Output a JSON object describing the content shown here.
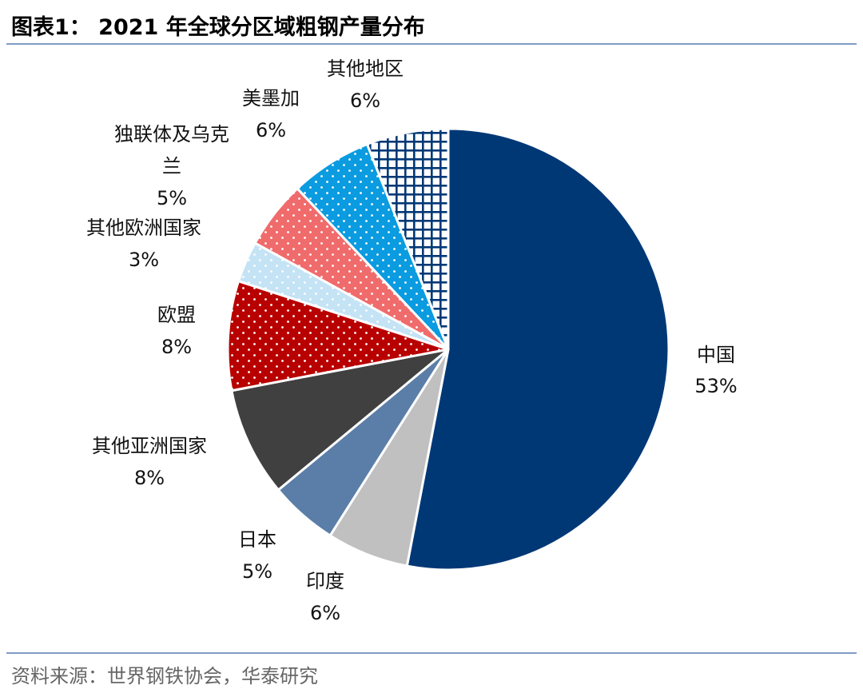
{
  "title": "图表1：  2021 年全球分区域粗钢产量分布",
  "source": "资料来源：世界钢铁协会，华泰研究",
  "chart_data": {
    "type": "pie",
    "title": "2021 年全球分区域粗钢产量分布",
    "unit": "%",
    "start": "12 o'clock, clockwise",
    "slices": [
      {
        "label": "中国",
        "value": 53,
        "value_label": "53%",
        "color": "#003876",
        "pattern": "solid"
      },
      {
        "label": "印度",
        "value": 6,
        "value_label": "6%",
        "color": "#c0c0c0",
        "pattern": "solid"
      },
      {
        "label": "日本",
        "value": 5,
        "value_label": "5%",
        "color": "#5b7ea8",
        "pattern": "solid"
      },
      {
        "label": "其他亚洲国家",
        "value": 8,
        "value_label": "8%",
        "color": "#404040",
        "pattern": "solid"
      },
      {
        "label": "欧盟",
        "value": 8,
        "value_label": "8%",
        "color": "#b80000",
        "pattern": "dots"
      },
      {
        "label": "其他欧洲国家",
        "value": 3,
        "value_label": "3%",
        "color": "#c4e3f5",
        "pattern": "dots"
      },
      {
        "label": "独联体及乌克兰",
        "label_lines": [
          "独联体及乌克",
          "兰"
        ],
        "value": 5,
        "value_label": "5%",
        "color": "#f06b6b",
        "pattern": "dots"
      },
      {
        "label": "美墨加",
        "value": 6,
        "value_label": "6%",
        "color": "#0a9be0",
        "pattern": "dots"
      },
      {
        "label": "其他地区",
        "value": 6,
        "value_label": "6%",
        "color": "#003876",
        "pattern": "grid"
      }
    ]
  }
}
